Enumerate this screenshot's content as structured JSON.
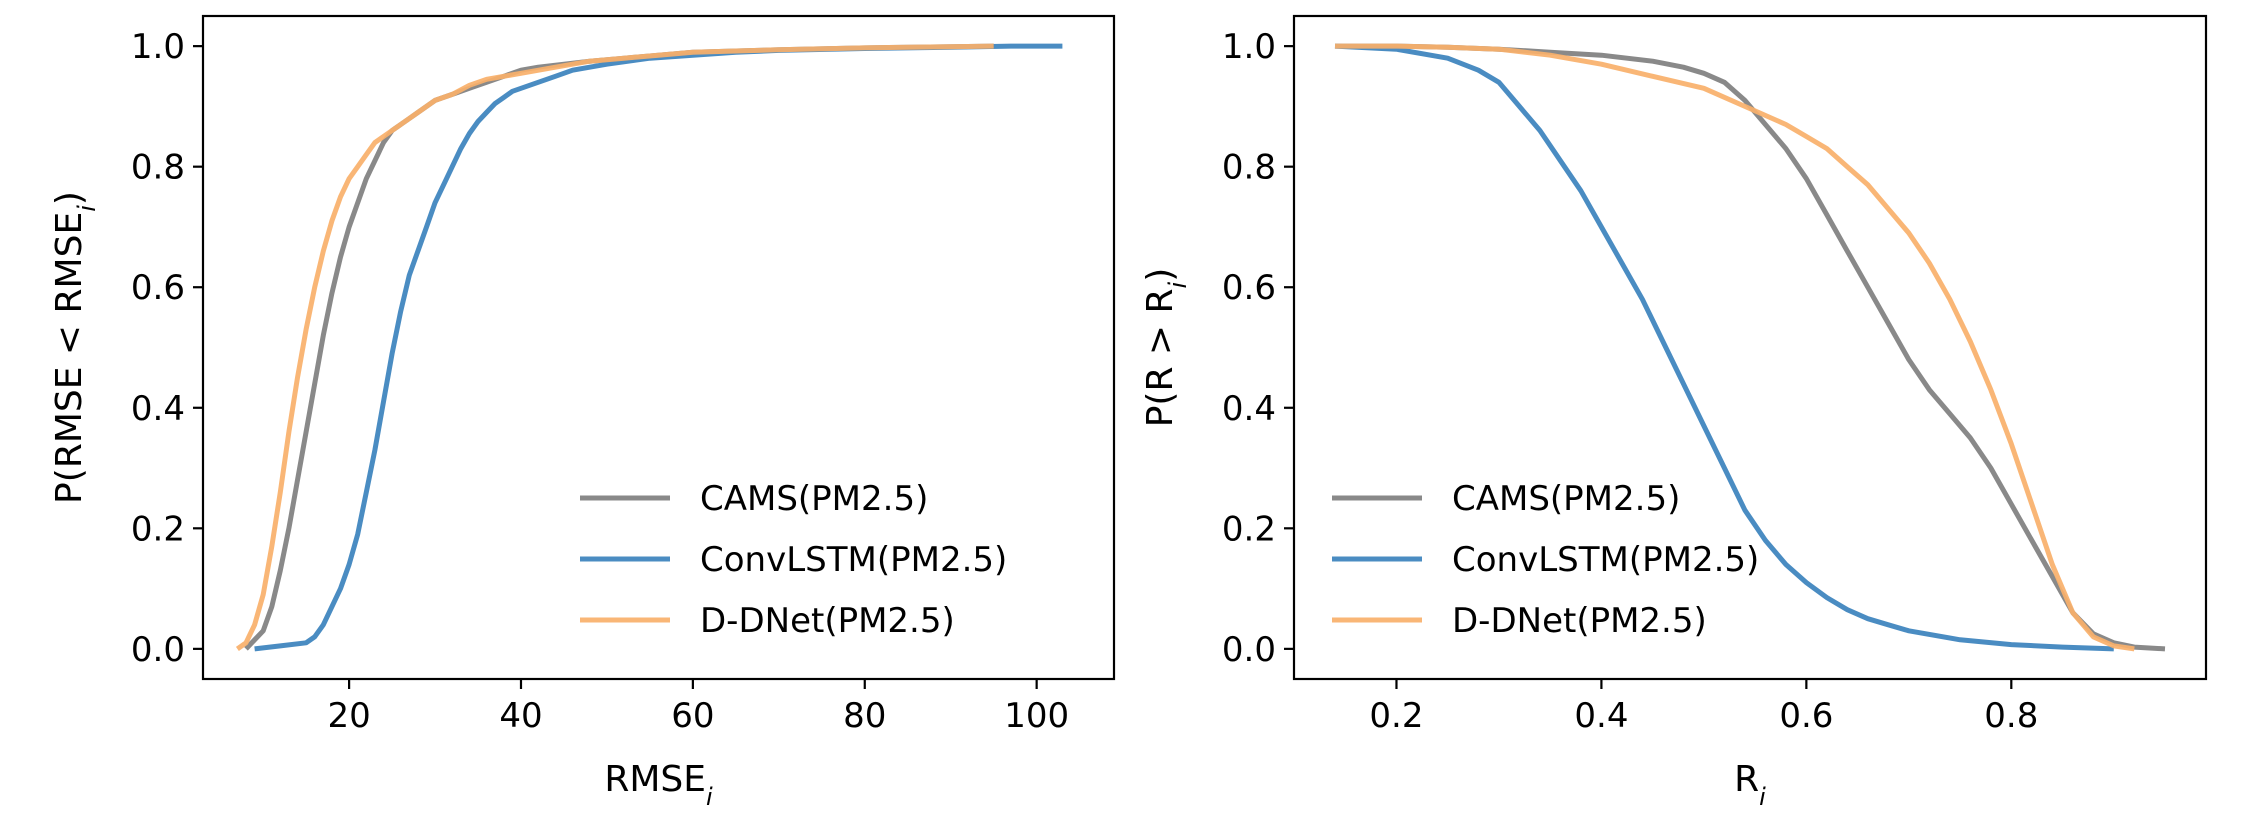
{
  "chart_data": [
    {
      "type": "line",
      "xlabel": "RMSE",
      "xlabel_sub": "i",
      "ylabel": "P(RMSE < RMSE",
      "ylabel_sub": "i",
      "ylabel_tail": ")",
      "xlim": [
        3,
        109
      ],
      "ylim": [
        -0.05,
        1.05
      ],
      "xticks": [
        20,
        40,
        60,
        80,
        100
      ],
      "yticks": [
        0.0,
        0.2,
        0.4,
        0.6,
        0.8,
        1.0
      ],
      "xtick_labels": [
        "20",
        "40",
        "60",
        "80",
        "100"
      ],
      "ytick_labels": [
        "0.0",
        "0.2",
        "0.4",
        "0.6",
        "0.8",
        "1.0"
      ],
      "grid": false,
      "legend_position": "lower-right",
      "series": [
        {
          "name": "CAMS(PM2.5)",
          "color": "#7f7f7f",
          "x": [
            8,
            10,
            11,
            12,
            13,
            14,
            15,
            16,
            17,
            18,
            19,
            20,
            21,
            22,
            23,
            24,
            25,
            26,
            27,
            28,
            30,
            32,
            34,
            36,
            38,
            40,
            42,
            45,
            48,
            52,
            56,
            60,
            65,
            70,
            80,
            90,
            95
          ],
          "y": [
            0.0,
            0.03,
            0.07,
            0.13,
            0.2,
            0.28,
            0.36,
            0.44,
            0.52,
            0.59,
            0.65,
            0.7,
            0.74,
            0.78,
            0.81,
            0.84,
            0.86,
            0.87,
            0.88,
            0.89,
            0.91,
            0.92,
            0.93,
            0.94,
            0.95,
            0.96,
            0.965,
            0.97,
            0.975,
            0.98,
            0.985,
            0.99,
            0.992,
            0.994,
            0.997,
            0.999,
            1.0
          ]
        },
        {
          "name": "ConvLSTM(PM2.5)",
          "color": "#3b82bd",
          "x": [
            9,
            12,
            15,
            16,
            17,
            18,
            19,
            20,
            21,
            22,
            23,
            24,
            25,
            26,
            27,
            28,
            29,
            30,
            31,
            32,
            33,
            34,
            35,
            36,
            37,
            38,
            39,
            40,
            42,
            44,
            46,
            48,
            50,
            55,
            60,
            65,
            70,
            80,
            90,
            97,
            103
          ],
          "y": [
            0.0,
            0.005,
            0.01,
            0.02,
            0.04,
            0.07,
            0.1,
            0.14,
            0.19,
            0.26,
            0.33,
            0.41,
            0.49,
            0.56,
            0.62,
            0.66,
            0.7,
            0.74,
            0.77,
            0.8,
            0.83,
            0.855,
            0.875,
            0.89,
            0.905,
            0.915,
            0.925,
            0.93,
            0.94,
            0.95,
            0.96,
            0.965,
            0.97,
            0.98,
            0.985,
            0.99,
            0.993,
            0.996,
            0.998,
            1.0,
            1.0
          ]
        },
        {
          "name": "D-DNet(PM2.5)",
          "color": "#f8b06a",
          "x": [
            7,
            8,
            9,
            10,
            11,
            12,
            13,
            14,
            15,
            16,
            17,
            18,
            19,
            20,
            21,
            22,
            23,
            24,
            25,
            26,
            28,
            30,
            32,
            34,
            36,
            38,
            40,
            44,
            48,
            52,
            56,
            60,
            70,
            80,
            90,
            95
          ],
          "y": [
            0.0,
            0.01,
            0.04,
            0.09,
            0.17,
            0.26,
            0.36,
            0.45,
            0.53,
            0.6,
            0.66,
            0.71,
            0.75,
            0.78,
            0.8,
            0.82,
            0.84,
            0.85,
            0.86,
            0.87,
            0.89,
            0.91,
            0.92,
            0.935,
            0.945,
            0.95,
            0.955,
            0.965,
            0.975,
            0.98,
            0.985,
            0.99,
            0.994,
            0.997,
            0.999,
            1.0
          ]
        }
      ]
    },
    {
      "type": "line",
      "xlabel": "R",
      "xlabel_sub": "i",
      "ylabel": "P(R > R",
      "ylabel_sub": "i",
      "ylabel_tail": ")",
      "xlim": [
        0.1,
        0.99
      ],
      "ylim": [
        -0.05,
        1.05
      ],
      "xticks": [
        0.2,
        0.4,
        0.6,
        0.8
      ],
      "yticks": [
        0.0,
        0.2,
        0.4,
        0.6,
        0.8,
        1.0
      ],
      "xtick_labels": [
        "0.2",
        "0.4",
        "0.6",
        "0.8"
      ],
      "ytick_labels": [
        "0.0",
        "0.2",
        "0.4",
        "0.6",
        "0.8",
        "1.0"
      ],
      "grid": false,
      "legend_position": "lower-left",
      "series": [
        {
          "name": "CAMS(PM2.5)",
          "color": "#7f7f7f",
          "x": [
            0.14,
            0.2,
            0.25,
            0.3,
            0.35,
            0.4,
            0.45,
            0.48,
            0.5,
            0.52,
            0.54,
            0.56,
            0.58,
            0.6,
            0.62,
            0.64,
            0.66,
            0.68,
            0.7,
            0.72,
            0.74,
            0.76,
            0.78,
            0.8,
            0.82,
            0.84,
            0.86,
            0.88,
            0.9,
            0.92,
            0.95
          ],
          "y": [
            1.0,
            1.0,
            0.998,
            0.995,
            0.99,
            0.985,
            0.975,
            0.965,
            0.955,
            0.94,
            0.91,
            0.87,
            0.83,
            0.78,
            0.72,
            0.66,
            0.6,
            0.54,
            0.48,
            0.43,
            0.39,
            0.35,
            0.3,
            0.24,
            0.18,
            0.12,
            0.06,
            0.025,
            0.01,
            0.003,
            0.0
          ]
        },
        {
          "name": "ConvLSTM(PM2.5)",
          "color": "#3b82bd",
          "x": [
            0.14,
            0.2,
            0.25,
            0.28,
            0.3,
            0.32,
            0.34,
            0.36,
            0.38,
            0.4,
            0.42,
            0.44,
            0.46,
            0.48,
            0.5,
            0.52,
            0.54,
            0.56,
            0.58,
            0.6,
            0.62,
            0.64,
            0.66,
            0.68,
            0.7,
            0.75,
            0.8,
            0.85,
            0.9
          ],
          "y": [
            1.0,
            0.995,
            0.98,
            0.96,
            0.94,
            0.9,
            0.86,
            0.81,
            0.76,
            0.7,
            0.64,
            0.58,
            0.51,
            0.44,
            0.37,
            0.3,
            0.23,
            0.18,
            0.14,
            0.11,
            0.085,
            0.065,
            0.05,
            0.04,
            0.03,
            0.015,
            0.007,
            0.003,
            0.0
          ]
        },
        {
          "name": "D-DNet(PM2.5)",
          "color": "#f8b06a",
          "x": [
            0.14,
            0.2,
            0.25,
            0.3,
            0.35,
            0.4,
            0.45,
            0.5,
            0.54,
            0.58,
            0.6,
            0.62,
            0.64,
            0.66,
            0.68,
            0.7,
            0.72,
            0.74,
            0.76,
            0.78,
            0.8,
            0.82,
            0.84,
            0.86,
            0.88,
            0.9,
            0.92
          ],
          "y": [
            1.0,
            1.0,
            0.998,
            0.995,
            0.985,
            0.97,
            0.95,
            0.93,
            0.9,
            0.87,
            0.85,
            0.83,
            0.8,
            0.77,
            0.73,
            0.69,
            0.64,
            0.58,
            0.51,
            0.43,
            0.34,
            0.24,
            0.14,
            0.06,
            0.02,
            0.005,
            0.0
          ]
        }
      ]
    }
  ]
}
